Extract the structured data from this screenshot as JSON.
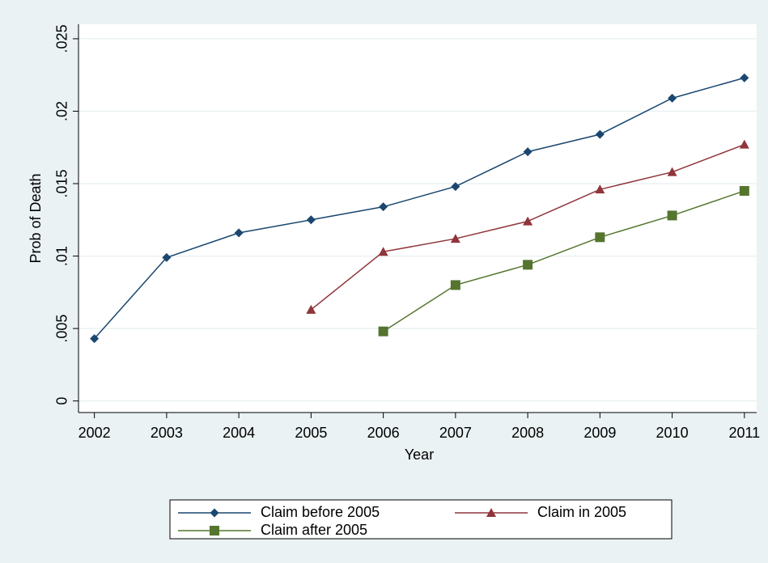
{
  "chart_data": {
    "type": "line",
    "x_label": "Year",
    "y_label": "Prob of Death",
    "x": [
      2002,
      2003,
      2004,
      2005,
      2006,
      2007,
      2008,
      2009,
      2010,
      2011
    ],
    "series": [
      {
        "name": "Claim before 2005",
        "color": "#1a476f",
        "marker": "diamond",
        "values": [
          0.0043,
          0.0099,
          0.0116,
          0.0125,
          0.0134,
          0.0148,
          0.0172,
          0.0184,
          0.0209,
          0.0223
        ]
      },
      {
        "name": "Claim in 2005",
        "color": "#90353b",
        "marker": "triangle",
        "values": [
          null,
          null,
          null,
          0.0063,
          0.0103,
          0.0112,
          0.0124,
          0.0146,
          0.0158,
          0.0177
        ]
      },
      {
        "name": "Claim after 2005",
        "color": "#55752f",
        "marker": "square",
        "values": [
          null,
          null,
          null,
          null,
          0.0048,
          0.008,
          0.0094,
          0.0113,
          0.0128,
          0.0145
        ]
      }
    ],
    "xlim": [
      2001.78,
      2011.17
    ],
    "ylim": [
      -0.0008,
      0.026
    ],
    "xticks": [
      2002,
      2003,
      2004,
      2005,
      2006,
      2007,
      2008,
      2009,
      2010,
      2011
    ],
    "yticks": [
      0,
      {
        "value": 0.005,
        "label": ".005"
      },
      {
        "value": 0.01,
        "label": ".01"
      },
      {
        "value": 0.015,
        "label": ".015"
      },
      {
        "value": 0.02,
        "label": ".02"
      },
      {
        "value": 0.025,
        "label": ".025"
      }
    ],
    "grid": true,
    "legend": "bottom"
  }
}
